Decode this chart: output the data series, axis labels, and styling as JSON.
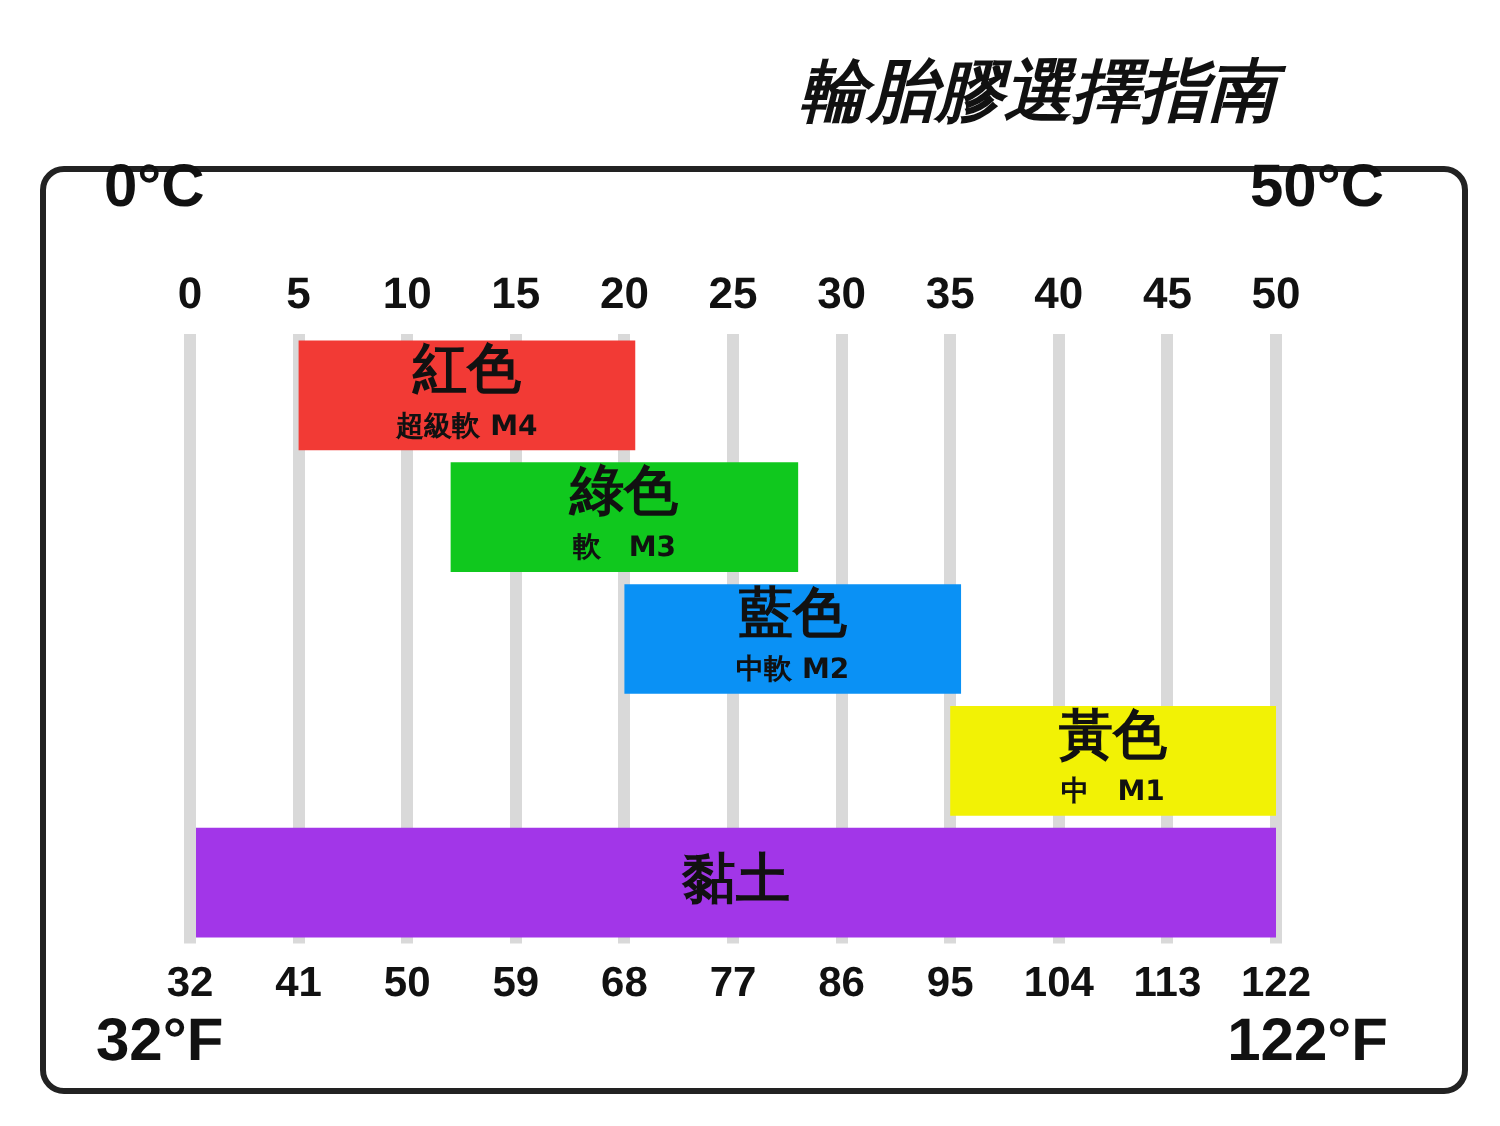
{
  "chart_data": {
    "type": "bar",
    "orientation": "horizontal",
    "title": "輪胎膠選擇指南",
    "categories": [
      "紅色",
      "綠色",
      "藍色",
      "黃色",
      "黏土"
    ],
    "base": [
      5,
      12,
      20,
      35,
      0
    ],
    "values": [
      15.5,
      16,
      15.5,
      15,
      50
    ],
    "colors": [
      "#f23a35",
      "#10c81e",
      "#0a91f5",
      "#f2f205",
      "#a236e8"
    ],
    "xlim": [
      0,
      50
    ],
    "xticks": [
      0,
      5,
      10,
      15,
      20,
      25,
      30,
      35,
      40,
      45,
      50
    ],
    "x2lim": [
      32,
      122
    ],
    "x2ticks": [
      32,
      41,
      50,
      59,
      68,
      77,
      86,
      95,
      104,
      113,
      122
    ],
    "grid": "x",
    "tick_labels": "x",
    "legend": false,
    "annotations": [
      "超級軟 M4",
      "軟　M3",
      "中軟 M2",
      "中　M1",
      "0°C",
      "50°C",
      "32°F",
      "122°F"
    ]
  }
}
